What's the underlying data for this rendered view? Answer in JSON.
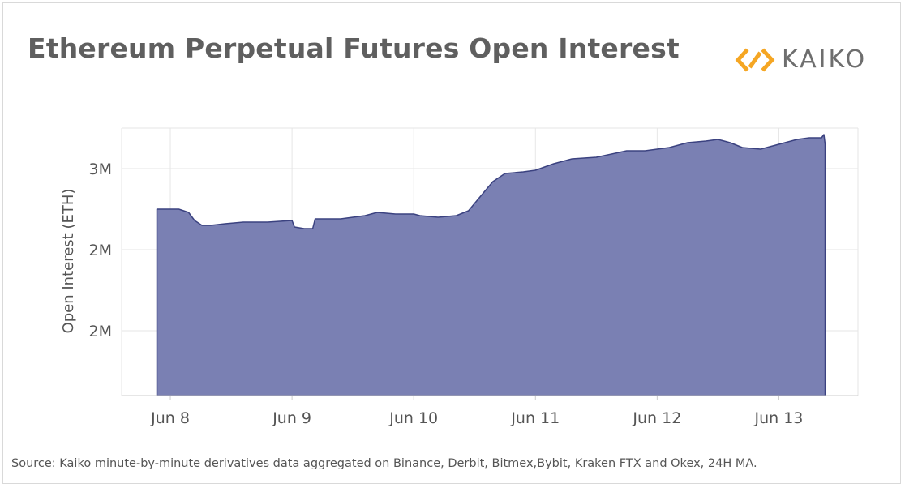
{
  "title": "Ethereum Perpetual Futures Open Interest",
  "brand": {
    "name": "KAIKO",
    "accent": "#f5a623",
    "text_color": "#6e6e6e"
  },
  "source": "Source: Kaiko minute-by-minute derivatives data aggregated on Binance, Derbit, Bitmex,Bybit, Kraken FTX and Okex, 24H MA.",
  "colors": {
    "area_fill": "#7a80b3",
    "area_line": "#3b4280",
    "grid": "#e6e6e6",
    "axis": "#cccccc",
    "tick_text": "#555555"
  },
  "chart_data": {
    "type": "area",
    "title": "Ethereum Perpetual Futures Open Interest",
    "xlabel": "",
    "ylabel": "Open Interest (ETH)",
    "xlim": [
      7.6,
      13.65
    ],
    "ylim": [
      1.3,
      2.95
    ],
    "xticks": [
      {
        "value": 8,
        "label": "Jun 8"
      },
      {
        "value": 9,
        "label": "Jun 9"
      },
      {
        "value": 10,
        "label": "Jun 10"
      },
      {
        "value": 11,
        "label": "Jun 11"
      },
      {
        "value": 12,
        "label": "Jun 12"
      },
      {
        "value": 13,
        "label": "Jun 13"
      }
    ],
    "yticks": [
      {
        "value": 1.7,
        "label": "2M"
      },
      {
        "value": 2.2,
        "label": "2M"
      },
      {
        "value": 2.7,
        "label": "3M"
      }
    ],
    "series": [
      {
        "name": "Open Interest",
        "x": [
          7.89,
          8.0,
          8.07,
          8.15,
          8.2,
          8.26,
          8.33,
          8.45,
          8.6,
          8.7,
          8.8,
          9.0,
          9.02,
          9.1,
          9.17,
          9.19,
          9.25,
          9.4,
          9.6,
          9.7,
          9.85,
          10.0,
          10.05,
          10.2,
          10.35,
          10.45,
          10.55,
          10.65,
          10.75,
          10.9,
          11.0,
          11.15,
          11.3,
          11.5,
          11.75,
          11.9,
          12.1,
          12.25,
          12.4,
          12.5,
          12.6,
          12.7,
          12.85,
          13.0,
          13.15,
          13.25,
          13.35,
          13.37,
          13.38
        ],
        "values": [
          2.45,
          2.45,
          2.45,
          2.43,
          2.38,
          2.35,
          2.35,
          2.36,
          2.37,
          2.37,
          2.37,
          2.38,
          2.34,
          2.33,
          2.33,
          2.39,
          2.39,
          2.39,
          2.41,
          2.43,
          2.42,
          2.42,
          2.41,
          2.4,
          2.41,
          2.44,
          2.53,
          2.62,
          2.67,
          2.68,
          2.69,
          2.73,
          2.76,
          2.77,
          2.81,
          2.81,
          2.83,
          2.86,
          2.87,
          2.88,
          2.86,
          2.83,
          2.82,
          2.85,
          2.88,
          2.89,
          2.89,
          2.91,
          2.85
        ]
      }
    ]
  }
}
